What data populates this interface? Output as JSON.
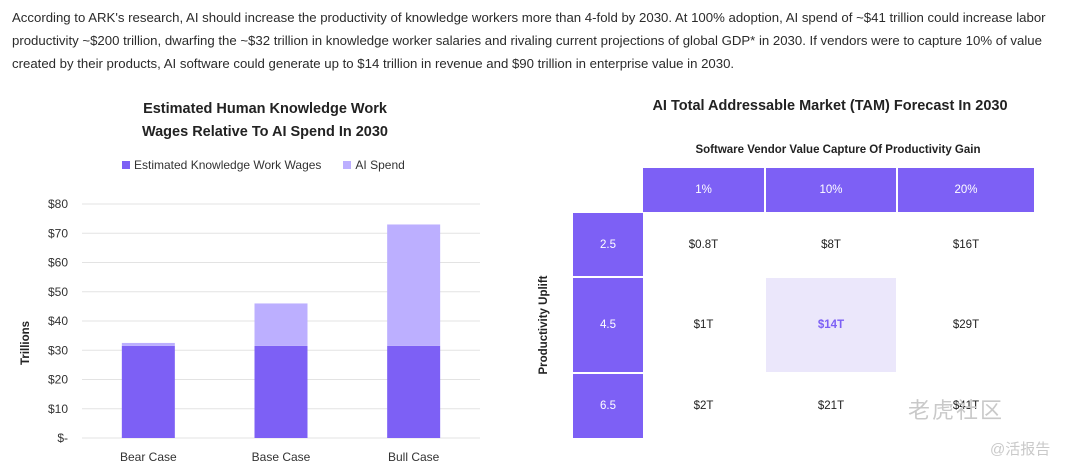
{
  "intro_text": "According to ARK's research, AI should increase the productivity of knowledge workers more than 4-fold by 2030. At 100% adoption, AI spend of ~$41 trillion could increase labor productivity ~$200 trillion, dwarfing the ~$32 trillion in knowledge worker salaries and rivaling current projections of global GDP* in 2030. If vendors were to capture 10% of value created by their products, AI software could generate up to $14 trillion in revenue and $90 trillion in enterprise value in 2030.",
  "colors": {
    "wages": "#7d60f5",
    "ai_spend": "#bcafff",
    "grid": "#e3e3e3"
  },
  "chart_data": [
    {
      "type": "bar",
      "stacked": true,
      "title_line1": "Estimated Human Knowledge Work",
      "title_line2": "Wages Relative To AI Spend In 2030",
      "ylabel": "Trillions",
      "ylim": [
        0,
        80
      ],
      "yticks": [
        0,
        10,
        20,
        30,
        40,
        50,
        60,
        70,
        80
      ],
      "ytick_labels": [
        "$-",
        "$10",
        "$20",
        "$30",
        "$40",
        "$50",
        "$60",
        "$70",
        "$80"
      ],
      "grid": true,
      "legend_position": "top-left",
      "categories": [
        "Bear Case",
        "Base Case",
        "Bull Case"
      ],
      "series": [
        {
          "name": "Estimated Knowledge Work Wages",
          "values": [
            31.5,
            31.5,
            31.5
          ]
        },
        {
          "name": "AI Spend",
          "values": [
            1,
            14.5,
            41.5
          ]
        }
      ]
    },
    {
      "type": "table",
      "title": "AI Total Addressable Market (TAM) Forecast In 2030",
      "subtitle": "Software Vendor Value Capture Of Productivity Gain",
      "row_axis_label": "Productivity Uplift",
      "columns": [
        "1%",
        "10%",
        "20%"
      ],
      "rows": [
        {
          "label": "2.5",
          "cells": [
            "$0.8T",
            "$8T",
            "$16T"
          ]
        },
        {
          "label": "4.5",
          "cells": [
            "$1T",
            "$14T",
            "$29T"
          ]
        },
        {
          "label": "6.5",
          "cells": [
            "$2T",
            "$21T",
            "$41T"
          ]
        }
      ],
      "highlight": {
        "row": 1,
        "col": 1
      }
    }
  ],
  "watermark": {
    "line1": "老虎社区",
    "line2": "@活报告"
  }
}
